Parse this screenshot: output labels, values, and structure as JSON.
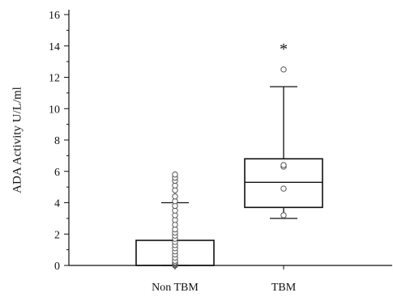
{
  "chart_data": {
    "type": "box",
    "ylabel": "ADA Activity U/L/ml",
    "ylim": [
      0,
      16
    ],
    "yticks": [
      0,
      2,
      4,
      6,
      8,
      10,
      12,
      14,
      16
    ],
    "categories": [
      "Non TBM",
      "TBM"
    ],
    "grid": false,
    "boxes": [
      {
        "category": "Non TBM",
        "whisker_low": 0,
        "q1": 0,
        "median": 0,
        "q3": 1.6,
        "whisker_high": 4.0,
        "points": [
          0.0,
          0.05,
          0.1,
          0.15,
          0.2,
          0.3,
          0.5,
          0.7,
          0.9,
          1.1,
          1.3,
          1.5,
          1.7,
          1.9,
          2.1,
          2.3,
          2.6,
          2.9,
          3.2,
          3.5,
          3.8,
          4.1,
          4.4,
          4.8,
          5.1,
          5.4,
          5.6,
          5.8
        ]
      },
      {
        "category": "TBM",
        "whisker_low": 3.0,
        "q1": 3.7,
        "median": 5.3,
        "q3": 6.8,
        "whisker_high": 11.4,
        "points": [
          3.2,
          4.9,
          6.3,
          6.4,
          12.5
        ]
      }
    ],
    "annotations": [
      {
        "text": "*",
        "category": "TBM",
        "y": 14.0
      }
    ]
  }
}
